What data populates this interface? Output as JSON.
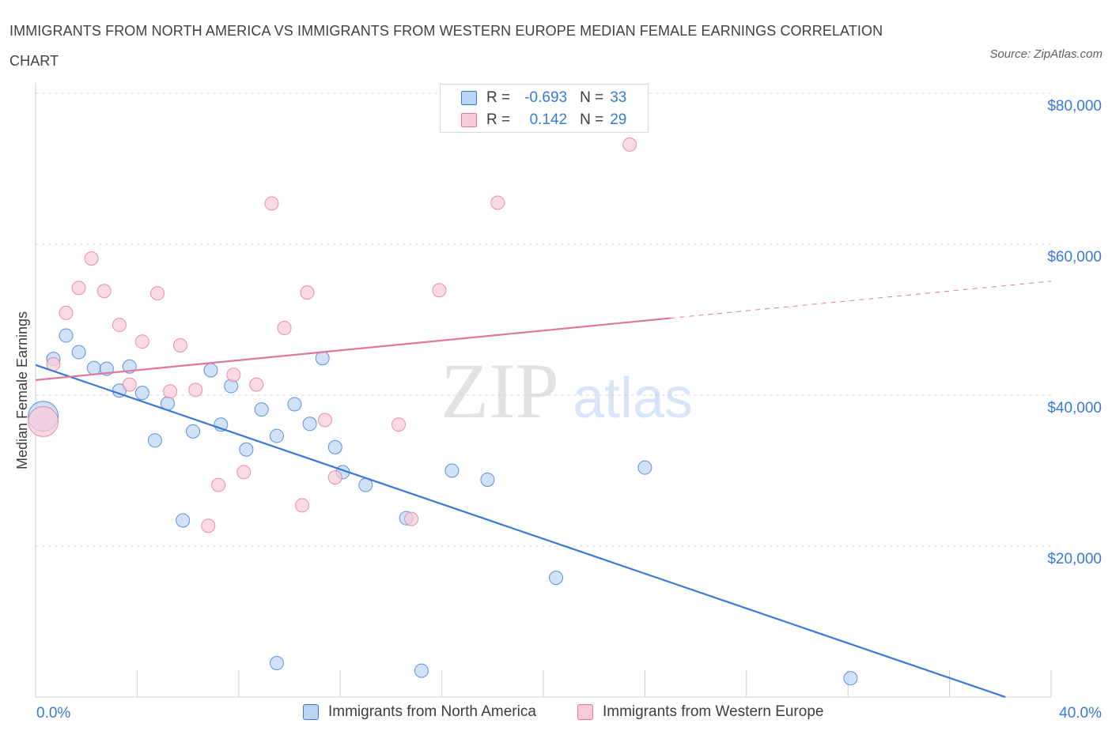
{
  "title": "IMMIGRANTS FROM NORTH AMERICA VS IMMIGRANTS FROM WESTERN EUROPE MEDIAN FEMALE EARNINGS CORRELATION CHART",
  "source": "Source: ZipAtlas.com",
  "watermark": {
    "zip": "ZIP",
    "atlas": "atlas"
  },
  "colors": {
    "blue": "#3a78d6",
    "blue_fill": "#bcd4f5",
    "pink": "#e0779a",
    "pink_fill": "#f9cad8",
    "grid": "#d9d9d9",
    "axis_label": "#3a78d6"
  },
  "legend": {
    "rows": [
      {
        "r_label": "R =",
        "r_value": "-0.693",
        "n_label": "N =",
        "n_value": "33"
      },
      {
        "r_label": "R =",
        "r_value": "0.142",
        "n_label": "N =",
        "n_value": "29"
      }
    ]
  },
  "bottom_legend": {
    "series1": "Immigrants from North America",
    "series2": "Immigrants from Western Europe"
  },
  "chart_data": {
    "type": "scatter",
    "title": "IMMIGRANTS FROM NORTH AMERICA VS IMMIGRANTS FROM WESTERN EUROPE MEDIAN FEMALE EARNINGS CORRELATION CHART",
    "xlabel": "",
    "ylabel": "Median Female Earnings",
    "xlim": [
      0,
      40
    ],
    "ylim": [
      0,
      80000
    ],
    "x_tick_labels": [
      "0.0%",
      "40.0%"
    ],
    "y_ticks": [
      20000,
      40000,
      60000,
      80000
    ],
    "y_tick_labels": [
      "$20,000",
      "$40,000",
      "$60,000",
      "$80,000"
    ],
    "grid": true,
    "legend_position": "top-center",
    "series": [
      {
        "name": "Immigrants from North America",
        "color": "#3a78d6",
        "R": -0.693,
        "N": 33,
        "trend": {
          "x": [
            0,
            38.2
          ],
          "y": [
            44000,
            0
          ]
        },
        "points": [
          {
            "x": 0.3,
            "y": 37200,
            "big": true
          },
          {
            "x": 0.7,
            "y": 44800
          },
          {
            "x": 1.2,
            "y": 47900
          },
          {
            "x": 1.7,
            "y": 45700
          },
          {
            "x": 2.3,
            "y": 43600
          },
          {
            "x": 2.8,
            "y": 43500
          },
          {
            "x": 3.3,
            "y": 40600
          },
          {
            "x": 3.7,
            "y": 43800
          },
          {
            "x": 4.2,
            "y": 40300
          },
          {
            "x": 4.7,
            "y": 34000
          },
          {
            "x": 5.2,
            "y": 38900
          },
          {
            "x": 5.8,
            "y": 23400
          },
          {
            "x": 6.2,
            "y": 35200
          },
          {
            "x": 6.9,
            "y": 43300
          },
          {
            "x": 7.3,
            "y": 36100
          },
          {
            "x": 7.7,
            "y": 41200
          },
          {
            "x": 8.3,
            "y": 32800
          },
          {
            "x": 8.9,
            "y": 38100
          },
          {
            "x": 9.5,
            "y": 34600
          },
          {
            "x": 9.5,
            "y": 4500
          },
          {
            "x": 10.2,
            "y": 38800
          },
          {
            "x": 10.8,
            "y": 36200
          },
          {
            "x": 11.3,
            "y": 44900
          },
          {
            "x": 11.8,
            "y": 33100
          },
          {
            "x": 12.1,
            "y": 29800
          },
          {
            "x": 13.0,
            "y": 28100
          },
          {
            "x": 14.6,
            "y": 23700
          },
          {
            "x": 15.2,
            "y": 3500
          },
          {
            "x": 16.4,
            "y": 30000
          },
          {
            "x": 17.8,
            "y": 28800
          },
          {
            "x": 20.5,
            "y": 15800
          },
          {
            "x": 24.0,
            "y": 30400
          },
          {
            "x": 32.1,
            "y": 2500
          }
        ]
      },
      {
        "name": "Immigrants from Western Europe",
        "color": "#e0779a",
        "R": 0.142,
        "N": 29,
        "trend": {
          "x": [
            0,
            25
          ],
          "y": [
            42000,
            50200
          ]
        },
        "trend_dashed": {
          "x": [
            25,
            40
          ],
          "y": [
            50200,
            55100
          ]
        },
        "points": [
          {
            "x": 0.3,
            "y": 36500,
            "big": true
          },
          {
            "x": 0.7,
            "y": 44100
          },
          {
            "x": 1.2,
            "y": 50900
          },
          {
            "x": 1.7,
            "y": 54200
          },
          {
            "x": 2.2,
            "y": 58100
          },
          {
            "x": 2.7,
            "y": 53800
          },
          {
            "x": 3.3,
            "y": 49300
          },
          {
            "x": 3.7,
            "y": 41400
          },
          {
            "x": 4.2,
            "y": 47100
          },
          {
            "x": 4.8,
            "y": 53500
          },
          {
            "x": 5.3,
            "y": 40500
          },
          {
            "x": 5.7,
            "y": 46600
          },
          {
            "x": 6.3,
            "y": 40700
          },
          {
            "x": 6.8,
            "y": 22700
          },
          {
            "x": 7.2,
            "y": 28100
          },
          {
            "x": 7.8,
            "y": 42700
          },
          {
            "x": 8.2,
            "y": 29800
          },
          {
            "x": 8.7,
            "y": 41400
          },
          {
            "x": 9.3,
            "y": 65400
          },
          {
            "x": 9.8,
            "y": 48900
          },
          {
            "x": 10.5,
            "y": 25400
          },
          {
            "x": 10.7,
            "y": 53600
          },
          {
            "x": 11.4,
            "y": 36700
          },
          {
            "x": 11.8,
            "y": 29100
          },
          {
            "x": 14.3,
            "y": 36100
          },
          {
            "x": 14.8,
            "y": 23600
          },
          {
            "x": 15.9,
            "y": 53900
          },
          {
            "x": 18.2,
            "y": 65500
          },
          {
            "x": 23.4,
            "y": 73200
          }
        ]
      }
    ]
  }
}
